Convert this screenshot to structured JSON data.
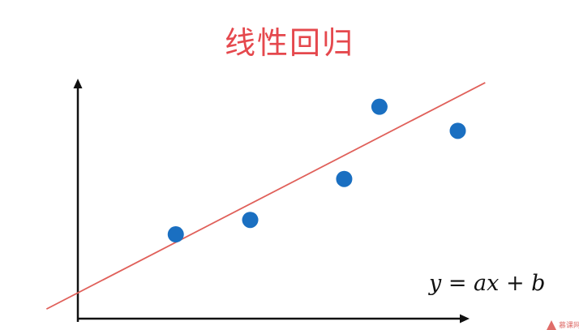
{
  "chart_data": {
    "type": "scatter",
    "title": "线性回归",
    "xlim": [
      0,
      100
    ],
    "ylim": [
      0,
      100
    ],
    "grid": false,
    "points": [
      {
        "x": 25,
        "y": 35
      },
      {
        "x": 44,
        "y": 41
      },
      {
        "x": 68,
        "y": 58
      },
      {
        "x": 77,
        "y": 88
      },
      {
        "x": 97,
        "y": 78
      }
    ],
    "fit_line": {
      "x_start": -8,
      "x_end": 104,
      "y_start": 4,
      "y_end": 98
    },
    "annotation": "y = ax + b",
    "colors": {
      "title": "#e5484d",
      "points": "#1a6fc1",
      "fit_line": "#e0605a",
      "axes": "#111111",
      "annotation": "#111111"
    }
  },
  "watermark": {
    "logo": "triangle-logo",
    "text": "慕课网"
  }
}
